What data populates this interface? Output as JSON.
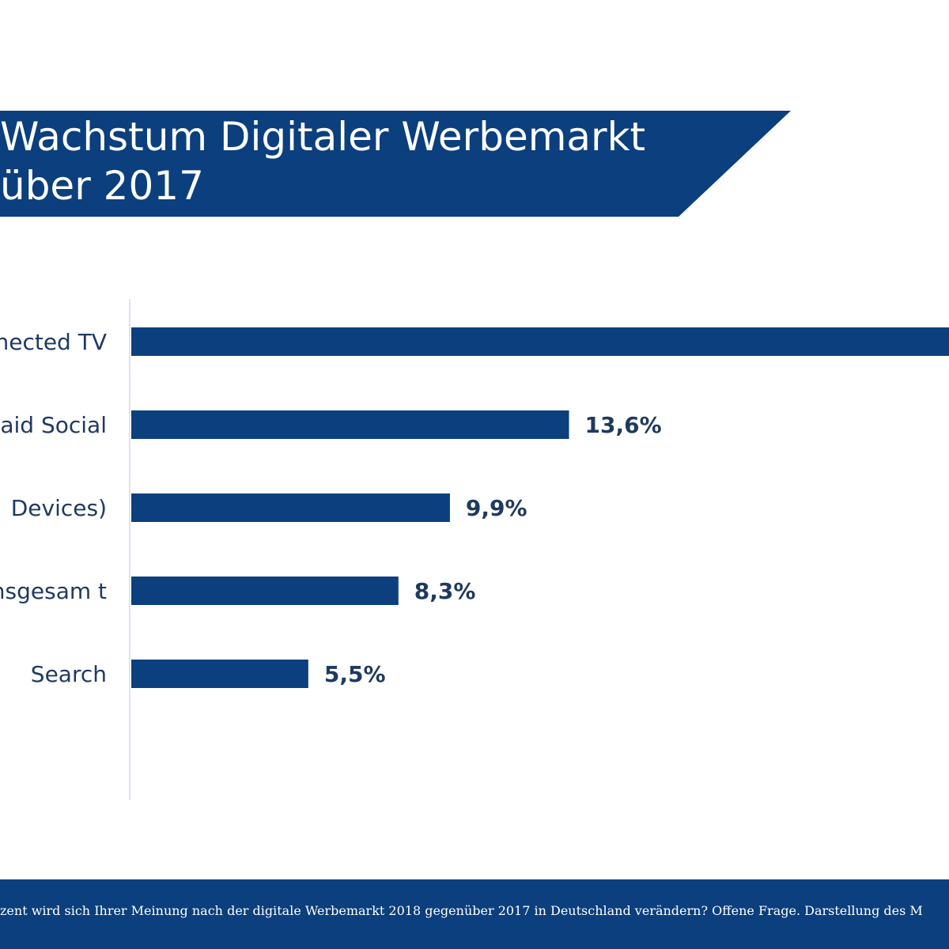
{
  "header": {
    "title_line1": "Wachstum Digitaler Werbemarkt",
    "title_line2": "über 2017"
  },
  "footer": {
    "note": "zent wird sich Ihrer Meinung nach der digitale Werbemarkt 2018 gegenüber 2017 in Deutschland verändern? Offene Frage. Darstellung des M"
  },
  "colors": {
    "bar": "#0b3f7d",
    "axis": "#dbe4ef",
    "label": "#1f3a60",
    "value": "#1f3a60"
  },
  "chart_data": {
    "type": "bar",
    "orientation": "horizontal",
    "categories": [
      "nected TV",
      "aid Social",
      "Devices)",
      "nsgesam t",
      "Search"
    ],
    "values": [
      null,
      13.6,
      9.9,
      8.3,
      5.5
    ],
    "value_labels": [
      "",
      "13,6%",
      "9,9%",
      "8,3%",
      "5,5%"
    ],
    "unit": "%"
  }
}
